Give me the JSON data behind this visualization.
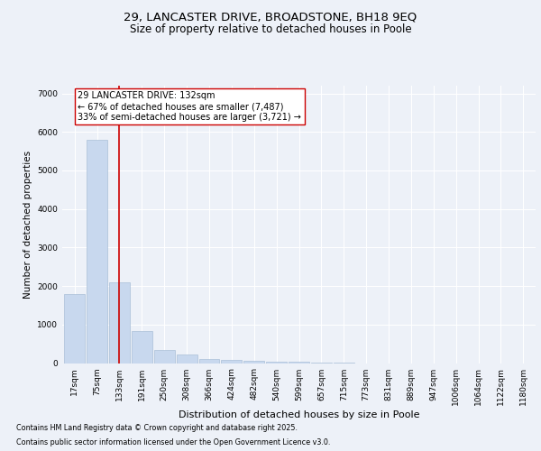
{
  "title_line1": "29, LANCASTER DRIVE, BROADSTONE, BH18 9EQ",
  "title_line2": "Size of property relative to detached houses in Poole",
  "xlabel": "Distribution of detached houses by size in Poole",
  "ylabel": "Number of detached properties",
  "categories": [
    "17sqm",
    "75sqm",
    "133sqm",
    "191sqm",
    "250sqm",
    "308sqm",
    "366sqm",
    "424sqm",
    "482sqm",
    "540sqm",
    "599sqm",
    "657sqm",
    "715sqm",
    "773sqm",
    "831sqm",
    "889sqm",
    "947sqm",
    "1006sqm",
    "1064sqm",
    "1122sqm",
    "1180sqm"
  ],
  "bar_heights": [
    1800,
    5800,
    2100,
    820,
    350,
    230,
    115,
    80,
    60,
    45,
    30,
    20,
    10,
    0,
    0,
    0,
    0,
    0,
    0,
    0,
    0
  ],
  "bar_color": "#c8d8ee",
  "bar_edge_color": "#aabfd8",
  "red_line_index": 2,
  "red_line_color": "#cc0000",
  "ylim": [
    0,
    7200
  ],
  "yticks": [
    0,
    1000,
    2000,
    3000,
    4000,
    5000,
    6000,
    7000
  ],
  "annotation_text": "29 LANCASTER DRIVE: 132sqm\n← 67% of detached houses are smaller (7,487)\n33% of semi-detached houses are larger (3,721) →",
  "annotation_box_color": "#ffffff",
  "annotation_box_edge": "#cc0000",
  "footer_line1": "Contains HM Land Registry data © Crown copyright and database right 2025.",
  "footer_line2": "Contains public sector information licensed under the Open Government Licence v3.0.",
  "background_color": "#edf1f8",
  "plot_bg_color": "#edf1f8",
  "grid_color": "#ffffff",
  "title_fontsize": 9.5,
  "subtitle_fontsize": 8.5,
  "tick_fontsize": 6.5,
  "ylabel_fontsize": 7.5,
  "xlabel_fontsize": 8,
  "annotation_fontsize": 7,
  "footer_fontsize": 5.8
}
